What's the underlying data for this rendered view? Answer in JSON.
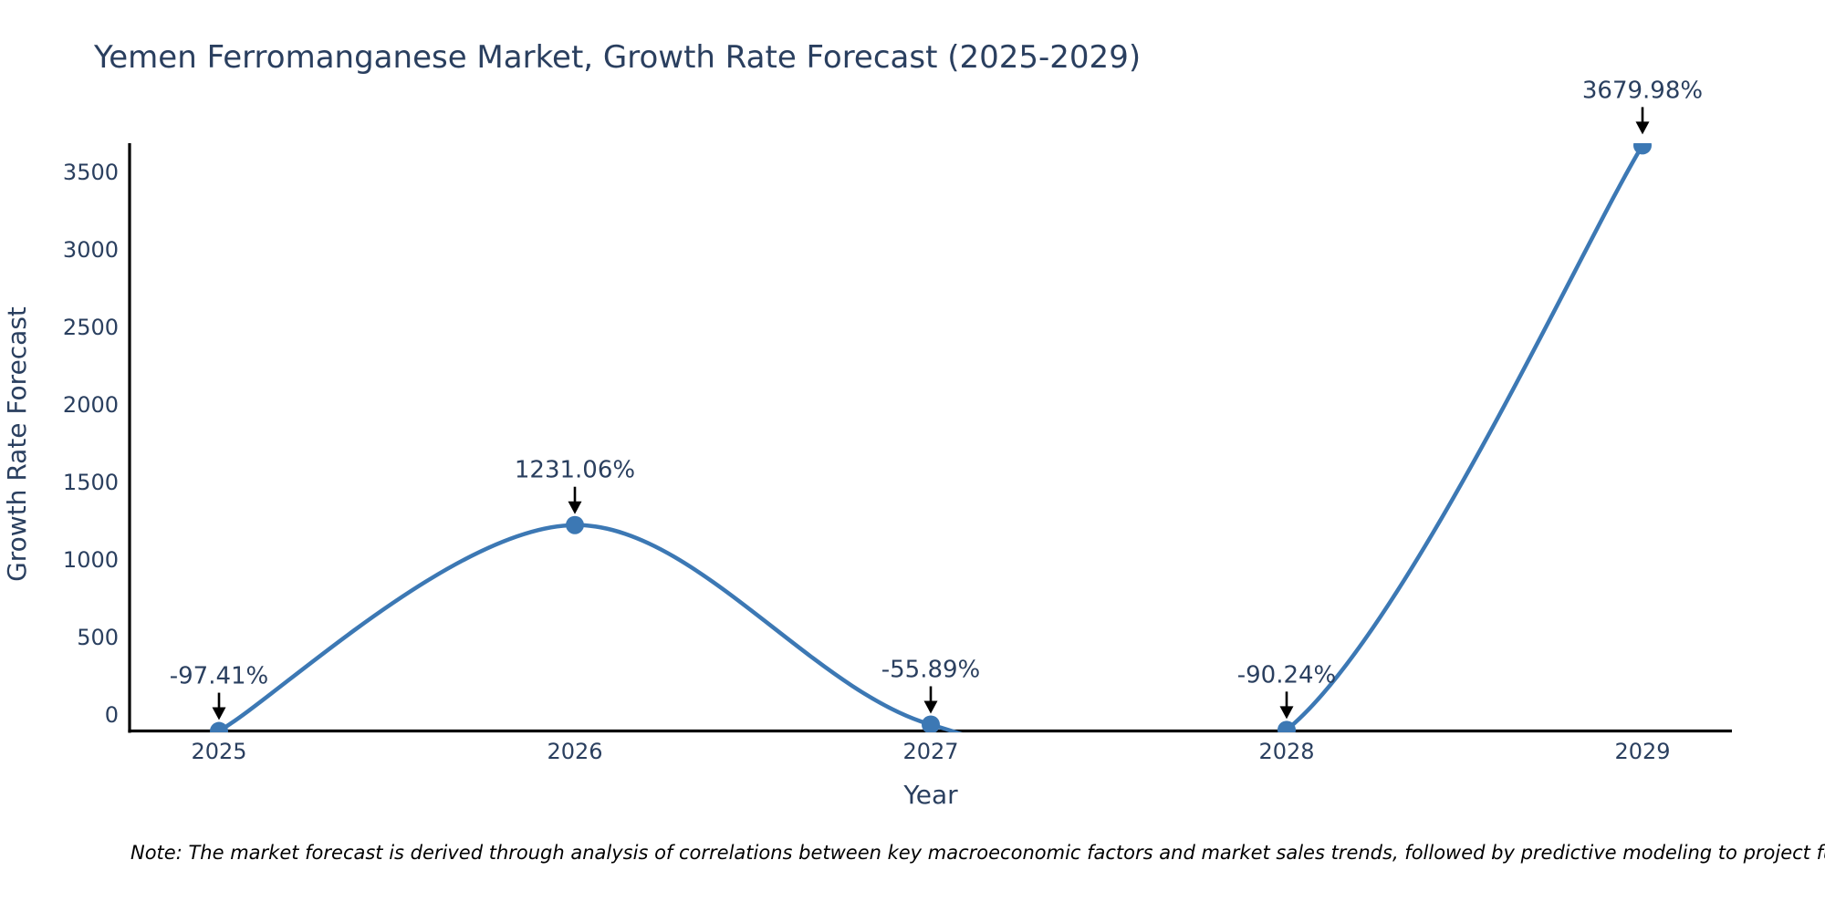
{
  "figure": {
    "title": "Yemen Ferromanganese Market, Growth Rate Forecast (2025-2029)",
    "note": "Note: The market forecast is derived through analysis of correlations between key macroeconomic factors and market sales trends, followed by predictive modeling to project future sa"
  },
  "chart_data": {
    "type": "line",
    "line_shape": "spline",
    "title": "Yemen Ferromanganese Market, Growth Rate Forecast (2025-2029)",
    "xlabel": "Year",
    "ylabel": "Growth Rate Forecast",
    "categories": [
      "2025",
      "2026",
      "2027",
      "2028",
      "2029"
    ],
    "values": [
      -97.41,
      1231.06,
      -55.89,
      -90.24,
      3679.98
    ],
    "point_labels": [
      "-97.41%",
      "1231.06%",
      "-55.89%",
      "-90.24%",
      "3679.98%"
    ],
    "yticks": [
      0,
      500,
      1000,
      1500,
      2000,
      2500,
      3000,
      3500
    ],
    "ylim": [
      -114,
      3694
    ],
    "grid": false,
    "legend": "none",
    "markers": true,
    "colors": {
      "line": "#3c78b4",
      "marker": "#3c78b4",
      "text": "#2a3f5f",
      "arrow": "#000000",
      "axis": "#000000",
      "background": "#ffffff"
    }
  }
}
